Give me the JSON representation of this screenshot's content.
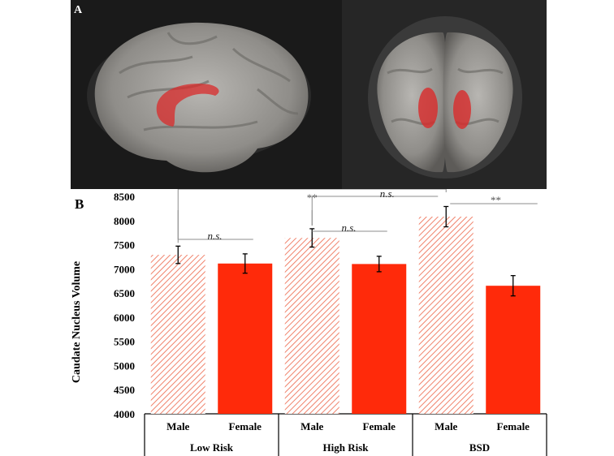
{
  "panel_a": {
    "label": "A"
  },
  "panel_b": {
    "label": "B"
  },
  "chart_data": {
    "type": "bar",
    "ylabel": "Caudate Nucleus Volume",
    "ylim": [
      4000,
      8500
    ],
    "yticks": [
      4000,
      4500,
      5000,
      5500,
      6000,
      6500,
      7000,
      7500,
      8000,
      8500
    ],
    "groups": [
      "Low Risk",
      "High Risk",
      "BSD"
    ],
    "categories": [
      "Male",
      "Female",
      "Male",
      "Female",
      "Male",
      "Female"
    ],
    "values": [
      7290,
      7110,
      7640,
      7100,
      8080,
      6650
    ],
    "errors": [
      180,
      200,
      190,
      160,
      210,
      210
    ],
    "bar_styles": [
      "hatched",
      "solid",
      "hatched",
      "solid",
      "hatched",
      "solid"
    ],
    "significance": [
      {
        "from": 0,
        "to": 4,
        "label": "**"
      },
      {
        "from": 0,
        "to": 1,
        "label": "n.s."
      },
      {
        "from": 2,
        "to": 3,
        "label": "n.s."
      },
      {
        "from": 2,
        "to": 4,
        "label": "n.s."
      },
      {
        "from": 4,
        "to": 5,
        "label": "**"
      }
    ],
    "colors": {
      "bar": "#ff2a0a",
      "hatch": "#f0826b",
      "bracket": "#8c8c8c"
    }
  }
}
